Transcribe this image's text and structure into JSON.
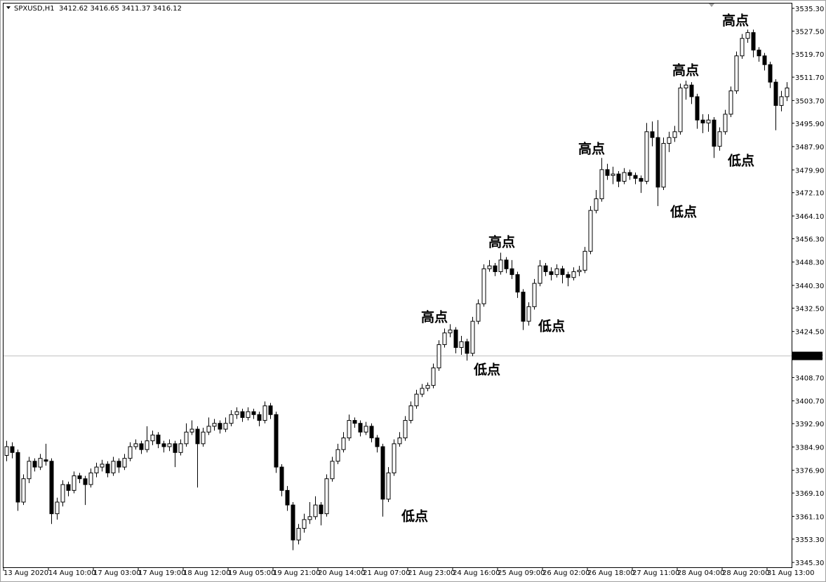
{
  "chart_data": {
    "type": "candlestick",
    "title": "SPXUSD,H1  3412.62 3416.65 3411.37 3416.12",
    "up_color": "#ffffff",
    "down_color": "#000000",
    "line_color": "#000000",
    "ylim": [
      3343.4,
      3537.2
    ],
    "yticks": [
      {
        "value": 3345.3,
        "label": "3345.30"
      },
      {
        "value": 3353.3,
        "label": "3353.30"
      },
      {
        "value": 3361.1,
        "label": "3361.10"
      },
      {
        "value": 3369.1,
        "label": "3369.10"
      },
      {
        "value": 3376.9,
        "label": "3376.90"
      },
      {
        "value": 3384.9,
        "label": "3384.90"
      },
      {
        "value": 3392.9,
        "label": "3392.90"
      },
      {
        "value": 3400.7,
        "label": "3400.70"
      },
      {
        "value": 3408.7,
        "label": "3408.70"
      },
      {
        "value": 3424.5,
        "label": "3424.50"
      },
      {
        "value": 3432.5,
        "label": "3432.50"
      },
      {
        "value": 3440.3,
        "label": "3440.30"
      },
      {
        "value": 3448.3,
        "label": "3448.30"
      },
      {
        "value": 3456.3,
        "label": "3456.30"
      },
      {
        "value": 3464.1,
        "label": "3464.10"
      },
      {
        "value": 3472.1,
        "label": "3472.10"
      },
      {
        "value": 3479.9,
        "label": "3479.90"
      },
      {
        "value": 3487.9,
        "label": "3487.90"
      },
      {
        "value": 3495.9,
        "label": "3495.90"
      },
      {
        "value": 3503.7,
        "label": "3503.70"
      },
      {
        "value": 3511.7,
        "label": "3511.70"
      },
      {
        "value": 3519.7,
        "label": "3519.70"
      },
      {
        "value": 3527.5,
        "label": "3527.50"
      },
      {
        "value": 3535.3,
        "label": "3535.30"
      }
    ],
    "current_price": 3416.12,
    "x_labels": [
      "13 Aug 2020",
      "14 Aug 10:00",
      "17 Aug 03:00",
      "17 Aug 19:00",
      "18 Aug 12:00",
      "19 Aug 05:00",
      "19 Aug 21:00",
      "20 Aug 14:00",
      "21 Aug 07:00",
      "21 Aug 23:00",
      "24 Aug 16:00",
      "25 Aug 09:00",
      "26 Aug 02:00",
      "26 Aug 18:00",
      "27 Aug 11:00",
      "28 Aug 04:00",
      "28 Aug 20:00",
      "31 Aug 13:00"
    ],
    "annotations": [
      "高点",
      "高点",
      "高点",
      "高点",
      "高点",
      "低点",
      "低点",
      "低点",
      "低点",
      "低点"
    ],
    "ohlc": [
      [
        3382,
        3387,
        3380,
        3385
      ],
      [
        3385,
        3386.5,
        3381,
        3383
      ],
      [
        3383,
        3384,
        3363,
        3366
      ],
      [
        3366,
        3375.5,
        3365,
        3374
      ],
      [
        3374,
        3381.5,
        3372.5,
        3380
      ],
      [
        3380,
        3381,
        3376.5,
        3378
      ],
      [
        3378,
        3382.5,
        3377,
        3381
      ],
      [
        3380.5,
        3386,
        3378.5,
        3380
      ],
      [
        3380,
        3381,
        3358.5,
        3362
      ],
      [
        3362,
        3367.5,
        3360,
        3366
      ],
      [
        3366,
        3373.5,
        3364.5,
        3372
      ],
      [
        3372,
        3373,
        3368,
        3370
      ],
      [
        3370,
        3376.5,
        3369,
        3375
      ],
      [
        3375,
        3376,
        3372.5,
        3374
      ],
      [
        3374,
        3375,
        3365,
        3372
      ],
      [
        3372,
        3377.5,
        3371,
        3376
      ],
      [
        3376,
        3379.5,
        3374.5,
        3378
      ],
      [
        3378,
        3380.5,
        3376.5,
        3379
      ],
      [
        3379,
        3380,
        3374.5,
        3376
      ],
      [
        3376,
        3381.5,
        3375,
        3380
      ],
      [
        3380,
        3381,
        3376,
        3378
      ],
      [
        3378,
        3382.5,
        3377,
        3381
      ],
      [
        3381,
        3386.5,
        3380,
        3385
      ],
      [
        3385,
        3387.5,
        3384,
        3386
      ],
      [
        3386,
        3387,
        3382.5,
        3384
      ],
      [
        3384,
        3392,
        3383,
        3387
      ],
      [
        3387,
        3390.5,
        3385.5,
        3389
      ],
      [
        3389,
        3390,
        3384.5,
        3386
      ],
      [
        3386,
        3387,
        3383,
        3385
      ],
      [
        3385,
        3387.5,
        3383.5,
        3386
      ],
      [
        3386,
        3387,
        3378,
        3383
      ],
      [
        3383,
        3387.5,
        3382,
        3386
      ],
      [
        3386,
        3393,
        3385,
        3390
      ],
      [
        3390,
        3394,
        3389,
        3391
      ],
      [
        3391,
        3392,
        3371,
        3386
      ],
      [
        3386,
        3391.5,
        3385,
        3390
      ],
      [
        3390,
        3395,
        3389,
        3392
      ],
      [
        3392,
        3394.5,
        3390.5,
        3393
      ],
      [
        3393,
        3394,
        3389.5,
        3391
      ],
      [
        3391,
        3395,
        3390,
        3393
      ],
      [
        3393,
        3397.5,
        3392,
        3396
      ],
      [
        3396,
        3398.5,
        3394.5,
        3397
      ],
      [
        3397,
        3398,
        3393.5,
        3395
      ],
      [
        3395,
        3398.5,
        3394,
        3397
      ],
      [
        3397,
        3398,
        3394.5,
        3396
      ],
      [
        3396,
        3397,
        3392,
        3394
      ],
      [
        3394,
        3400.5,
        3393,
        3399
      ],
      [
        3399,
        3400,
        3394.5,
        3396
      ],
      [
        3396,
        3397,
        3376,
        3378
      ],
      [
        3378,
        3379,
        3368,
        3370
      ],
      [
        3370,
        3371.5,
        3363,
        3365
      ],
      [
        3365,
        3366,
        3349.5,
        3353
      ],
      [
        3353,
        3358.5,
        3351.5,
        3357
      ],
      [
        3357,
        3362,
        3355.5,
        3360
      ],
      [
        3360,
        3366,
        3358.5,
        3361
      ],
      [
        3361,
        3368,
        3360,
        3365
      ],
      [
        3365,
        3366,
        3358,
        3362
      ],
      [
        3362,
        3375.5,
        3361,
        3374
      ],
      [
        3374,
        3381.5,
        3373,
        3380
      ],
      [
        3380,
        3386,
        3379,
        3384
      ],
      [
        3384,
        3390,
        3383,
        3388
      ],
      [
        3388,
        3396,
        3387,
        3394
      ],
      [
        3394,
        3395,
        3391.5,
        3393
      ],
      [
        3393,
        3394,
        3388.5,
        3390
      ],
      [
        3390,
        3393.5,
        3389,
        3392
      ],
      [
        3392,
        3393,
        3386.5,
        3388
      ],
      [
        3388,
        3389,
        3383,
        3385
      ],
      [
        3385,
        3386,
        3361,
        3367
      ],
      [
        3367,
        3378,
        3366,
        3376
      ],
      [
        3376,
        3387.5,
        3375,
        3386
      ],
      [
        3386,
        3390,
        3385,
        3388
      ],
      [
        3388,
        3395.5,
        3387,
        3394
      ],
      [
        3394,
        3400.5,
        3393,
        3399
      ],
      [
        3399,
        3404.5,
        3398,
        3403
      ],
      [
        3403,
        3406.5,
        3402,
        3405
      ],
      [
        3405,
        3407,
        3404,
        3406
      ],
      [
        3406,
        3413.5,
        3405,
        3412
      ],
      [
        3412,
        3421.5,
        3411,
        3420
      ],
      [
        3420,
        3425.5,
        3419,
        3424
      ],
      [
        3424,
        3427,
        3422.5,
        3425
      ],
      [
        3425,
        3426,
        3417,
        3419
      ],
      [
        3419,
        3423,
        3416.5,
        3421
      ],
      [
        3421,
        3422,
        3414.5,
        3417
      ],
      [
        3417,
        3429.5,
        3416,
        3428
      ],
      [
        3428,
        3435.5,
        3427,
        3434
      ],
      [
        3434,
        3447.5,
        3433,
        3446
      ],
      [
        3446,
        3449,
        3445,
        3447
      ],
      [
        3447,
        3448,
        3443.5,
        3445
      ],
      [
        3445,
        3451.5,
        3444,
        3449
      ],
      [
        3449,
        3450,
        3444.5,
        3446
      ],
      [
        3446,
        3449,
        3442.5,
        3444
      ],
      [
        3444,
        3445,
        3436,
        3438
      ],
      [
        3438,
        3439,
        3425,
        3428
      ],
      [
        3428,
        3434.5,
        3426.5,
        3433
      ],
      [
        3433,
        3442.5,
        3432,
        3441
      ],
      [
        3441,
        3449,
        3440,
        3447
      ],
      [
        3447,
        3448,
        3443.5,
        3445
      ],
      [
        3445,
        3446.5,
        3442,
        3444
      ],
      [
        3444,
        3447.5,
        3443,
        3446
      ],
      [
        3446,
        3447,
        3441,
        3444
      ],
      [
        3444,
        3445,
        3440,
        3443
      ],
      [
        3443,
        3446.5,
        3442,
        3445
      ],
      [
        3445,
        3447,
        3443.5,
        3445.5
      ],
      [
        3445.5,
        3453.5,
        3444.5,
        3452
      ],
      [
        3452,
        3467.5,
        3451,
        3466
      ],
      [
        3466,
        3473,
        3465,
        3470
      ],
      [
        3470,
        3484,
        3469,
        3480
      ],
      [
        3480,
        3482,
        3476.5,
        3478
      ],
      [
        3478,
        3481,
        3475,
        3478.5
      ],
      [
        3478.5,
        3479.5,
        3474,
        3476
      ],
      [
        3476,
        3480.5,
        3475,
        3479
      ],
      [
        3479,
        3480,
        3476.5,
        3478
      ],
      [
        3478,
        3479,
        3475,
        3477
      ],
      [
        3477,
        3478,
        3472,
        3476
      ],
      [
        3476,
        3496,
        3475,
        3493
      ],
      [
        3493,
        3496.5,
        3488,
        3491
      ],
      [
        3491,
        3497,
        3467.5,
        3474
      ],
      [
        3474,
        3491,
        3473,
        3489
      ],
      [
        3489,
        3493,
        3486,
        3491
      ],
      [
        3491,
        3495,
        3489.5,
        3493
      ],
      [
        3493,
        3509.5,
        3492,
        3508
      ],
      [
        3508,
        3510.5,
        3504,
        3509
      ],
      [
        3509,
        3510,
        3502.5,
        3505
      ],
      [
        3505,
        3506,
        3494,
        3497
      ],
      [
        3497,
        3499,
        3492.5,
        3496
      ],
      [
        3496,
        3499,
        3493,
        3497
      ],
      [
        3497,
        3498,
        3484,
        3488
      ],
      [
        3488,
        3494.5,
        3486.5,
        3493
      ],
      [
        3493,
        3500.5,
        3492,
        3499
      ],
      [
        3499,
        3508.5,
        3498,
        3507
      ],
      [
        3507,
        3520.5,
        3506,
        3519
      ],
      [
        3519,
        3526.5,
        3518,
        3525
      ],
      [
        3525,
        3528,
        3523.5,
        3527
      ],
      [
        3527,
        3528,
        3518.5,
        3521
      ],
      [
        3521,
        3522,
        3517,
        3519
      ],
      [
        3519,
        3520,
        3514,
        3516
      ],
      [
        3516,
        3517,
        3508,
        3510
      ],
      [
        3510,
        3511,
        3493.5,
        3502
      ],
      [
        3502,
        3507,
        3500,
        3505
      ],
      [
        3505,
        3510,
        3503.5,
        3508
      ]
    ]
  }
}
